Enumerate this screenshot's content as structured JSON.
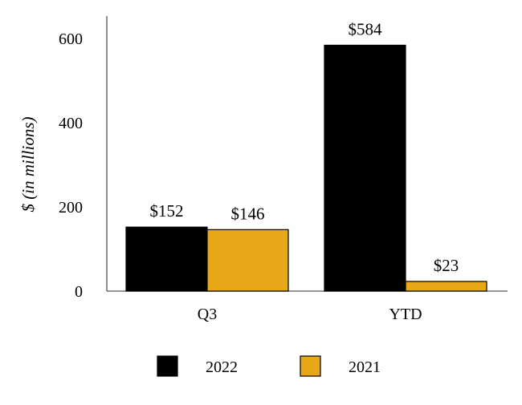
{
  "chart_data": {
    "type": "bar",
    "title": "",
    "xlabel": "",
    "ylabel": "$ (in millions)",
    "categories": [
      "Q3",
      "YTD"
    ],
    "series": [
      {
        "name": "2022",
        "color": "#000000",
        "values": [
          152,
          584
        ],
        "labels": [
          "$152",
          "$584"
        ]
      },
      {
        "name": "2021",
        "color": "#E6A817",
        "values": [
          146,
          23
        ],
        "labels": [
          "$146",
          "$23"
        ]
      }
    ],
    "ylim": [
      0,
      600
    ],
    "yticks": [
      0,
      200,
      400,
      600
    ],
    "grid": false,
    "legend_position": "bottom"
  }
}
